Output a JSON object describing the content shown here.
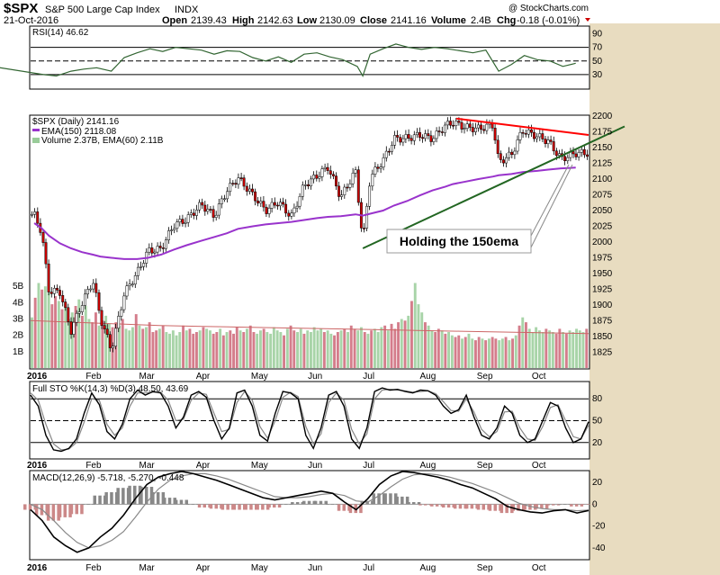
{
  "header": {
    "symbol": "$SPX",
    "name": "S&P 500 Large Cap Index",
    "exchange": "INDX",
    "date": "21-Oct-2016",
    "open_label": "Open",
    "open": "2139.43",
    "high_label": "High",
    "high": "2142.63",
    "low_label": "Low",
    "low": "2130.09",
    "close_label": "Close",
    "close": "2141.16",
    "volume_label": "Volume",
    "volume": "2.4B",
    "chg_label": "Chg",
    "chg": "-0.18 (-0.01%)",
    "watermark": "@ StockCharts.com"
  },
  "colors": {
    "up_candle": "#ffffff",
    "down_candle": "#cc0000",
    "ema": "#9933cc",
    "volume_up": "#99cc99",
    "volume_down": "#cc6677",
    "rsi_line": "#336633",
    "resistance": "#ff0000",
    "support": "#226622",
    "annotation": "#0000cc",
    "side_bg": "#d9c7a0"
  },
  "chart_data": [
    {
      "type": "line",
      "panel": "rsi",
      "title": "RSI(14) 46.62",
      "ylim": [
        10,
        100
      ],
      "yticks": [
        30,
        50,
        70,
        90
      ],
      "reference_lines": [
        30,
        50,
        70
      ],
      "x": [
        "2015-12",
        "2016-01-05",
        "2016-01-12",
        "2016-01-20",
        "2016-01-27",
        "2016-02-03",
        "2016-02-11",
        "2016-02-18",
        "2016-02-25",
        "2016-03-03",
        "2016-03-10",
        "2016-03-17",
        "2016-03-24",
        "2016-03-31",
        "2016-04-07",
        "2016-04-14",
        "2016-04-21",
        "2016-04-28",
        "2016-05-05",
        "2016-05-12",
        "2016-05-19",
        "2016-05-26",
        "2016-06-02",
        "2016-06-09",
        "2016-06-16",
        "2016-06-24",
        "2016-06-27",
        "2016-07-01",
        "2016-07-08",
        "2016-07-15",
        "2016-07-22",
        "2016-07-29",
        "2016-08-05",
        "2016-08-12",
        "2016-08-19",
        "2016-08-26",
        "2016-09-02",
        "2016-09-09",
        "2016-09-16",
        "2016-09-23",
        "2016-09-30",
        "2016-10-07",
        "2016-10-14",
        "2016-10-21"
      ],
      "values": [
        45,
        30,
        28,
        35,
        38,
        40,
        35,
        55,
        62,
        68,
        64,
        70,
        68,
        66,
        60,
        65,
        64,
        55,
        50,
        56,
        48,
        60,
        62,
        56,
        52,
        42,
        28,
        60,
        68,
        75,
        70,
        67,
        70,
        68,
        65,
        62,
        66,
        35,
        45,
        58,
        52,
        50,
        42,
        46.62
      ]
    },
    {
      "type": "line",
      "panel": "price",
      "title": "$SPX (Daily) 2141.16",
      "ylim": [
        1800,
        2200
      ],
      "yticks": [
        1825,
        1850,
        1875,
        1900,
        1925,
        1950,
        1975,
        2000,
        2025,
        2050,
        2075,
        2100,
        2125,
        2150,
        2175,
        2200
      ],
      "xlabels": [
        "2016",
        "Feb",
        "Mar",
        "Apr",
        "May",
        "Jun",
        "Jul",
        "Aug",
        "Sep",
        "Oct"
      ],
      "legend": [
        {
          "name": "$SPX (Daily) 2141.16"
        },
        {
          "name": "EMA(150) 2118.08"
        },
        {
          "name": "Volume 2.37B, EMA(60) 2.11B"
        }
      ],
      "x": [
        "2015-12-31",
        "2016-01-04",
        "2016-01-08",
        "2016-01-14",
        "2016-01-20",
        "2016-01-26",
        "2016-02-01",
        "2016-02-05",
        "2016-02-11",
        "2016-02-18",
        "2016-02-25",
        "2016-03-02",
        "2016-03-09",
        "2016-03-16",
        "2016-03-23",
        "2016-03-31",
        "2016-04-07",
        "2016-04-14",
        "2016-04-20",
        "2016-04-28",
        "2016-05-05",
        "2016-05-12",
        "2016-05-19",
        "2016-05-26",
        "2016-06-02",
        "2016-06-08",
        "2016-06-15",
        "2016-06-23",
        "2016-06-27",
        "2016-07-01",
        "2016-07-08",
        "2016-07-14",
        "2016-07-21",
        "2016-07-28",
        "2016-08-04",
        "2016-08-11",
        "2016-08-15",
        "2016-08-22",
        "2016-08-29",
        "2016-09-06",
        "2016-09-09",
        "2016-09-16",
        "2016-09-22",
        "2016-09-30",
        "2016-10-06",
        "2016-10-13",
        "2016-10-21"
      ],
      "values": [
        2044,
        2016,
        1922,
        1921,
        1859,
        1903,
        1939,
        1880,
        1829,
        1918,
        1951,
        1986,
        1989,
        2027,
        2036,
        2060,
        2041,
        2082,
        2102,
        2075,
        2050,
        2064,
        2040,
        2090,
        2105,
        2119,
        2071,
        2113,
        2000,
        2103,
        2129,
        2164,
        2165,
        2170,
        2164,
        2185,
        2190,
        2182,
        2180,
        2186,
        2127,
        2139,
        2177,
        2168,
        2160,
        2132,
        2141.16
      ],
      "ema150": [
        2030,
        2022,
        2010,
        1998,
        1990,
        1984,
        1980,
        1977,
        1975,
        1973,
        1973,
        1975,
        1980,
        1988,
        1995,
        2002,
        2008,
        2014,
        2021,
        2025,
        2028,
        2030,
        2032,
        2035,
        2038,
        2040,
        2041,
        2044,
        2042,
        2045,
        2050,
        2058,
        2065,
        2074,
        2082,
        2088,
        2092,
        2096,
        2100,
        2104,
        2106,
        2108,
        2111,
        2113,
        2115,
        2117,
        2118.08
      ],
      "resistance_line": {
        "from": [
          "2016-08-17",
          2196
        ],
        "to": [
          "2016-10-28",
          2170
        ]
      },
      "support_line": {
        "from": [
          "2016-06-27",
          1990
        ],
        "to": [
          "2016-10-28",
          2155
        ]
      },
      "annotation": "Holding the 150ema"
    },
    {
      "type": "bar",
      "panel": "volume",
      "ytick_labels": [
        "1B",
        "2B",
        "3B",
        "4B",
        "5B"
      ],
      "ylim": [
        0,
        6
      ],
      "values": [
        3.1,
        4.3,
        5.2,
        4.8,
        5.0,
        4.6,
        3.9,
        4.4,
        4.1,
        3.6,
        3.9,
        3.0,
        3.4,
        3.8,
        4.2,
        3.2,
        3.8,
        3.0,
        2.8,
        3.4,
        2.6,
        2.9,
        3.2,
        2.7,
        2.5,
        2.8,
        2.6,
        3.0,
        2.4,
        2.3,
        2.5,
        3.3,
        2.6,
        2.4,
        2.5,
        2.8,
        2.2,
        2.3,
        2.4,
        2.6,
        2.2,
        2.1,
        2.3,
        2.0,
        2.2,
        2.6,
        2.3,
        2.4,
        2.1,
        2.2,
        2.3,
        2.5,
        2.4,
        2.3,
        2.1,
        2.2,
        2.4,
        2.0,
        2.2,
        2.3,
        2.1,
        2.5,
        2.3,
        2.2,
        2.4,
        2.6,
        2.2,
        2.1,
        2.3,
        2.4,
        2.2,
        2.1,
        2.5,
        2.3,
        2.2,
        2.0,
        2.4,
        2.6,
        2.3,
        2.2,
        2.4,
        2.1,
        2.3,
        2.2,
        2.5,
        2.3,
        2.4,
        2.2,
        2.3,
        2.1,
        2.0,
        2.2,
        2.3,
        2.4,
        2.2,
        2.6,
        2.4,
        2.3,
        2.5,
        2.2,
        2.1,
        2.3,
        2.4,
        2.2,
        2.5,
        2.6,
        2.3,
        2.7,
        2.4,
        2.8,
        3.0,
        2.9,
        3.2,
        4.1,
        5.2,
        3.9,
        3.4,
        2.8,
        2.6,
        2.3,
        2.2,
        2.4,
        2.3,
        2.1,
        2.2,
        2.0,
        1.9,
        2.0,
        1.8,
        1.9,
        2.1,
        1.8,
        1.7,
        1.9,
        1.8,
        1.7,
        1.8,
        1.9,
        1.8,
        1.7,
        1.8,
        1.9,
        1.7,
        1.8,
        2.0,
        2.6,
        3.1,
        2.8,
        2.4,
        2.2,
        2.5,
        2.3,
        2.2,
        2.4,
        2.3,
        2.2,
        2.1,
        2.4,
        2.2,
        2.1,
        2.3,
        2.2,
        2.4,
        2.3,
        2.2,
        2.4
      ],
      "ema60": [
        2.9,
        2.8,
        2.7,
        2.6,
        2.55,
        2.5,
        2.45,
        2.4,
        2.35,
        2.3,
        2.25,
        2.2,
        2.15,
        2.11
      ]
    },
    {
      "type": "line",
      "panel": "stochastic",
      "title": "Full STO %K(14,3) %D(3) 48.50, 43.69",
      "ylim": [
        0,
        100
      ],
      "yticks": [
        20,
        50,
        80
      ],
      "reference_lines": [
        20,
        50,
        80
      ],
      "k": [
        85,
        70,
        30,
        10,
        8,
        12,
        25,
        60,
        88,
        72,
        35,
        25,
        45,
        80,
        92,
        85,
        90,
        88,
        70,
        40,
        55,
        85,
        90,
        82,
        50,
        25,
        40,
        88,
        92,
        70,
        30,
        22,
        60,
        90,
        88,
        80,
        30,
        12,
        40,
        85,
        90,
        70,
        25,
        12,
        40,
        90,
        95,
        92,
        93,
        90,
        88,
        92,
        91,
        85,
        70,
        60,
        65,
        85,
        55,
        30,
        25,
        40,
        70,
        60,
        30,
        20,
        25,
        50,
        75,
        70,
        40,
        20,
        25,
        48.5
      ],
      "d": [
        88,
        78,
        45,
        18,
        10,
        11,
        20,
        48,
        80,
        78,
        45,
        30,
        40,
        70,
        88,
        88,
        89,
        89,
        78,
        50,
        52,
        78,
        88,
        86,
        60,
        35,
        38,
        75,
        90,
        78,
        42,
        26,
        50,
        82,
        89,
        83,
        42,
        18,
        32,
        75,
        88,
        78,
        38,
        18,
        32,
        80,
        92,
        93,
        92,
        91,
        89,
        90,
        91,
        87,
        76,
        64,
        63,
        80,
        62,
        38,
        28,
        35,
        62,
        63,
        40,
        25,
        23,
        42,
        68,
        72,
        50,
        28,
        25,
        43.69
      ]
    },
    {
      "type": "line",
      "panel": "macd",
      "title": "MACD(12,26,9) -5.718, -5.270, -0.448",
      "ylim": [
        -50,
        30
      ],
      "yticks": [
        -40,
        -20,
        0,
        20
      ],
      "macd": [
        -5,
        -15,
        -30,
        -38,
        -44,
        -40,
        -30,
        -22,
        -10,
        5,
        18,
        25,
        28,
        30,
        28,
        25,
        22,
        18,
        14,
        10,
        6,
        4,
        6,
        8,
        10,
        12,
        10,
        2,
        -5,
        5,
        18,
        26,
        30,
        29,
        27,
        25,
        22,
        18,
        15,
        10,
        5,
        -2,
        -5,
        -7,
        -8,
        -6,
        -5,
        -8,
        -5.718
      ],
      "signal": [
        0,
        -5,
        -15,
        -26,
        -35,
        -40,
        -38,
        -33,
        -25,
        -12,
        2,
        14,
        22,
        26,
        28,
        28,
        26,
        23,
        19,
        15,
        11,
        7,
        6,
        6,
        7,
        9,
        10,
        8,
        3,
        2,
        8,
        16,
        23,
        27,
        28,
        27,
        25,
        22,
        19,
        15,
        11,
        6,
        1,
        -2,
        -4,
        -5,
        -5,
        -6,
        -5.27
      ],
      "histogram": [
        -5,
        -10,
        -15,
        -12,
        -9,
        0,
        8,
        11,
        15,
        17,
        16,
        11,
        6,
        4,
        0,
        -3,
        -4,
        -5,
        -5,
        -5,
        -5,
        -3,
        0,
        2,
        3,
        3,
        0,
        -6,
        -8,
        3,
        10,
        10,
        7,
        2,
        -1,
        -2,
        -3,
        -4,
        -4,
        -5,
        -6,
        -8,
        -6,
        -5,
        -4,
        -1,
        0,
        -2,
        -0.448
      ]
    }
  ]
}
